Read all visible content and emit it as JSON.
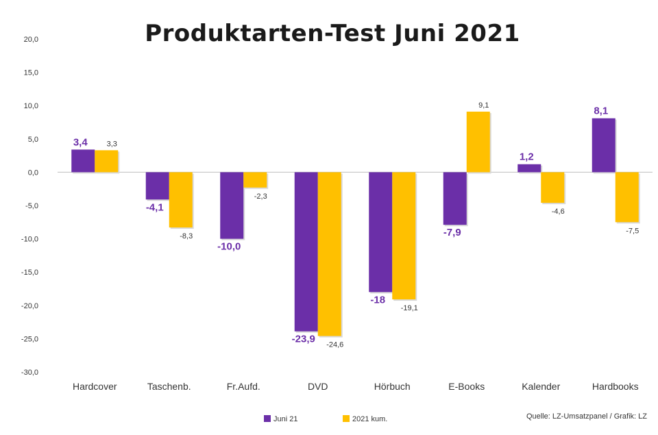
{
  "chart_data": {
    "type": "bar",
    "title": "Produktarten-Test Juni 2021",
    "categories": [
      "Hardcover",
      "Taschenb.",
      "Fr.Aufd.",
      "DVD",
      "Hörbuch",
      "E-Books",
      "Kalender",
      "Hardbooks"
    ],
    "series": [
      {
        "name": "Juni 21",
        "values": [
          3.4,
          -4.1,
          -10.0,
          -23.9,
          -18.0,
          -7.9,
          1.2,
          8.1
        ],
        "labels": [
          "3,4",
          "-4,1",
          "-10,0",
          "-23,9",
          "-18",
          "-7,9",
          "1,2",
          "8,1"
        ],
        "color": "#6b2fa8"
      },
      {
        "name": "2021 kum.",
        "values": [
          3.3,
          -8.3,
          -2.3,
          -24.6,
          -19.1,
          9.1,
          -4.6,
          -7.5
        ],
        "labels": [
          "3,3",
          "-8,3",
          "-2,3",
          "-24,6",
          "-19,1",
          "9,1",
          "-4,6",
          "-7,5"
        ],
        "color": "#ffc000"
      }
    ],
    "ylim": [
      -30,
      20
    ],
    "yticks": [
      "20,0",
      "15,0",
      "10,0",
      "5,0",
      "0,0",
      "-5,0",
      "-10,0",
      "-15,0",
      "-20,0",
      "-25,0",
      "-30,0"
    ],
    "ytick_values": [
      20,
      15,
      10,
      5,
      0,
      -5,
      -10,
      -15,
      -20,
      -25,
      -30
    ],
    "grid": false,
    "legend_position": "bottom"
  },
  "source": "Quelle: LZ-Umsatzpanel / Grafik: LZ"
}
